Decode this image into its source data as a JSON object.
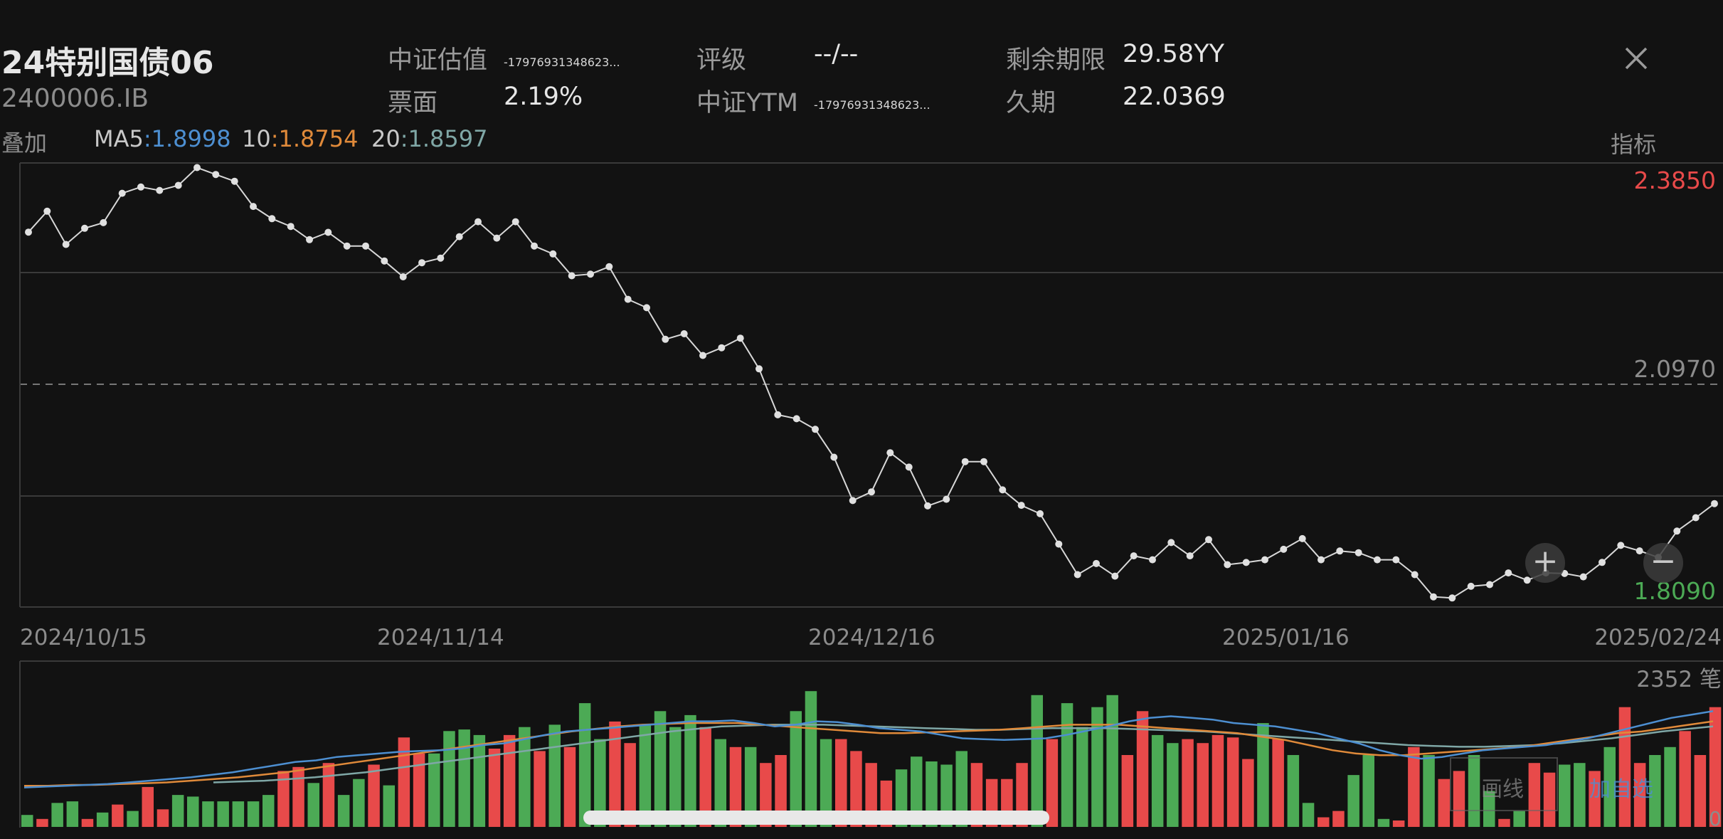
{
  "header": {
    "title": "24特别国债06",
    "code": "2400006.IB",
    "fields": [
      {
        "label": "中证估值",
        "value": "-17976931348623...",
        "small": true
      },
      {
        "label": "评级",
        "value": "--/--",
        "small": false
      },
      {
        "label": "剩余期限",
        "value": "29.58YY",
        "small": false
      },
      {
        "label": "票面",
        "value": "2.19%",
        "small": false
      },
      {
        "label": "中证YTM",
        "value": "-17976931348623...",
        "small": true
      },
      {
        "label": "久期",
        "value": "22.0369",
        "small": false
      }
    ],
    "overlay_label": "叠加",
    "ma": [
      {
        "label": "MA5",
        "sep": ":",
        "value": "1.8998",
        "color": "#4d8fd1"
      },
      {
        "label": "10",
        "sep": ":",
        "value": "1.8754",
        "color": "#e08a3a"
      },
      {
        "label": "20",
        "sep": ":",
        "value": "1.8597",
        "color": "#7fa7a6"
      }
    ],
    "indicator_label": "指标",
    "close_icon": "close-icon"
  },
  "chart_data": {
    "type": "line",
    "y_high_label": "2.3850",
    "y_mid_label": "2.0970",
    "y_low_label": "1.8090",
    "ylim": [
      1.809,
      2.385
    ],
    "x_tick_labels": [
      "2024/10/15",
      "2024/11/14",
      "2024/12/16",
      "2025/01/16",
      "2025/02/24"
    ],
    "grid": true,
    "up_color": "#e84a4a",
    "down_color": "#4caa55",
    "line_color": "#d8d8d8",
    "values": [
      2.2991,
      2.3265,
      2.2829,
      2.3041,
      2.3115,
      2.35,
      2.3582,
      2.3537,
      2.3603,
      2.3836,
      2.3746,
      2.3657,
      2.3327,
      2.3167,
      2.3065,
      2.2892,
      2.2988,
      2.2809,
      2.2809,
      2.2613,
      2.2405,
      2.259,
      2.265,
      2.2931,
      2.3127,
      2.2912,
      2.3127,
      2.2809,
      2.2705,
      2.2419,
      2.2441,
      2.2538,
      2.2111,
      2.2001,
      2.1587,
      2.166,
      2.1375,
      2.1476,
      2.1602,
      2.12,
      2.0598,
      2.0547,
      2.0408,
      2.0043,
      1.9475,
      1.9589,
      2.0101,
      1.9913,
      1.9405,
      1.9492,
      1.9985,
      1.9985,
      1.9615,
      1.9413,
      1.9303,
      1.8905,
      1.8505,
      1.865,
      1.8485,
      1.8751,
      1.87,
      1.8925,
      1.8751,
      1.8963,
      1.8635,
      1.8664,
      1.87,
      1.8837,
      1.8976,
      1.87,
      1.8814,
      1.8792,
      1.87,
      1.87,
      1.8505,
      1.8214,
      1.8199,
      1.8352,
      1.8374,
      1.8527,
      1.8432,
      1.8527,
      1.852,
      1.8476,
      1.8665,
      1.8888,
      1.8816,
      1.873,
      1.9075,
      1.925,
      1.9435
    ],
    "volume": {
      "max_label": "2352 笔",
      "zero_label": "0",
      "values": [
        15,
        10,
        30,
        32,
        10,
        18,
        28,
        20,
        50,
        22,
        40,
        38,
        32,
        32,
        32,
        32,
        40,
        70,
        75,
        55,
        80,
        40,
        60,
        78,
        52,
        112,
        92,
        92,
        120,
        122,
        115,
        98,
        115,
        125,
        95,
        128,
        100,
        155,
        110,
        132,
        105,
        128,
        145,
        125,
        140,
        125,
        110,
        100,
        100,
        80,
        90,
        145,
        170,
        110,
        110,
        95,
        80,
        58,
        72,
        88,
        82,
        78,
        95,
        80,
        60,
        60,
        80,
        165,
        110,
        155,
        125,
        150,
        165,
        90,
        145,
        115,
        105,
        110,
        105,
        115,
        112,
        85,
        130,
        110,
        90,
        30,
        12,
        20,
        65,
        90,
        10,
        8,
        100,
        90,
        60,
        70,
        90,
        45,
        10,
        20,
        80,
        68,
        78,
        80,
        70,
        100,
        150,
        80,
        90,
        100,
        120,
        90,
        150
      ],
      "colors": [
        "g",
        "r",
        "g",
        "g",
        "r",
        "g",
        "r",
        "g",
        "r",
        "r",
        "g",
        "g",
        "g",
        "g",
        "g",
        "g",
        "g",
        "r",
        "r",
        "g",
        "r",
        "g",
        "g",
        "r",
        "g",
        "r",
        "r",
        "g",
        "g",
        "g",
        "g",
        "r",
        "r",
        "g",
        "r",
        "g",
        "r",
        "g",
        "g",
        "r",
        "r",
        "g",
        "g",
        "g",
        "g",
        "r",
        "g",
        "r",
        "g",
        "r",
        "r",
        "g",
        "g",
        "g",
        "r",
        "r",
        "r",
        "r",
        "g",
        "g",
        "g",
        "g",
        "g",
        "r",
        "r",
        "r",
        "r",
        "g",
        "r",
        "g",
        "g",
        "g",
        "g",
        "r",
        "r",
        "g",
        "g",
        "r",
        "r",
        "r",
        "r",
        "r",
        "g",
        "r",
        "g",
        "g",
        "r",
        "r",
        "g",
        "g",
        "g",
        "r",
        "r",
        "g",
        "r",
        "r",
        "g",
        "g",
        "r",
        "g",
        "r",
        "r",
        "g",
        "g",
        "r",
        "g",
        "r",
        "r",
        "g",
        "g",
        "r",
        "r",
        "r"
      ],
      "ma5": [
        0.28,
        0.29,
        0.3,
        0.31,
        0.32,
        0.34,
        0.36,
        0.38,
        0.4,
        0.43,
        0.46,
        0.5,
        0.54,
        0.58,
        0.6,
        0.64,
        0.66,
        0.68,
        0.7,
        0.71,
        0.72,
        0.74,
        0.78,
        0.8,
        0.85,
        0.9,
        0.94,
        0.96,
        0.98,
        1.0,
        1.02,
        1.04,
        1.06,
        1.06,
        1.07,
        1.04,
        1.0,
        1.02,
        1.06,
        1.05,
        1.02,
        0.98,
        0.96,
        0.94,
        0.9,
        0.86,
        0.85,
        0.84,
        0.85,
        0.86,
        0.9,
        0.95,
        1.0,
        1.06,
        1.1,
        1.12,
        1.1,
        1.08,
        1.04,
        1.02,
        1.0,
        0.96,
        0.92,
        0.86,
        0.8,
        0.72,
        0.66,
        0.62,
        0.64,
        0.68,
        0.72,
        0.74,
        0.76,
        0.78,
        0.82,
        0.86,
        0.92,
        0.98,
        1.04,
        1.1,
        1.14,
        1.18
      ],
      "ma10": [
        0.3,
        0.3,
        0.31,
        0.31,
        0.32,
        0.33,
        0.34,
        0.36,
        0.38,
        0.4,
        0.43,
        0.46,
        0.5,
        0.54,
        0.58,
        0.62,
        0.66,
        0.7,
        0.74,
        0.78,
        0.82,
        0.86,
        0.9,
        0.94,
        0.97,
        1.0,
        1.02,
        1.03,
        1.04,
        1.04,
        1.04,
        1.02,
        1.0,
        0.98,
        0.96,
        0.94,
        0.92,
        0.92,
        0.93,
        0.94,
        0.95,
        0.96,
        0.98,
        1.0,
        1.02,
        1.02,
        1.02,
        1.0,
        0.98,
        0.96,
        0.94,
        0.92,
        0.88,
        0.84,
        0.78,
        0.72,
        0.68,
        0.66,
        0.66,
        0.68,
        0.7,
        0.72,
        0.74,
        0.76,
        0.8,
        0.84,
        0.88,
        0.92,
        0.94,
        0.98,
        1.02,
        1.06
      ],
      "ma20": [
        0.34,
        0.35,
        0.36,
        0.38,
        0.4,
        0.43,
        0.46,
        0.5,
        0.54,
        0.58,
        0.62,
        0.66,
        0.7,
        0.74,
        0.78,
        0.82,
        0.86,
        0.9,
        0.94,
        0.97,
        1.0,
        1.01,
        1.02,
        1.02,
        1.02,
        1.01,
        1.0,
        0.99,
        0.98,
        0.97,
        0.96,
        0.96,
        0.97,
        0.98,
        0.98,
        0.98,
        0.97,
        0.96,
        0.95,
        0.94,
        0.92,
        0.9,
        0.88,
        0.86,
        0.84,
        0.82,
        0.8,
        0.78,
        0.77,
        0.76,
        0.76,
        0.77,
        0.78,
        0.8,
        0.83,
        0.86,
        0.9,
        0.94,
        0.97,
        1.0
      ]
    }
  },
  "tools": {
    "draw_label": "画线",
    "add_watch_label": "加自选"
  }
}
